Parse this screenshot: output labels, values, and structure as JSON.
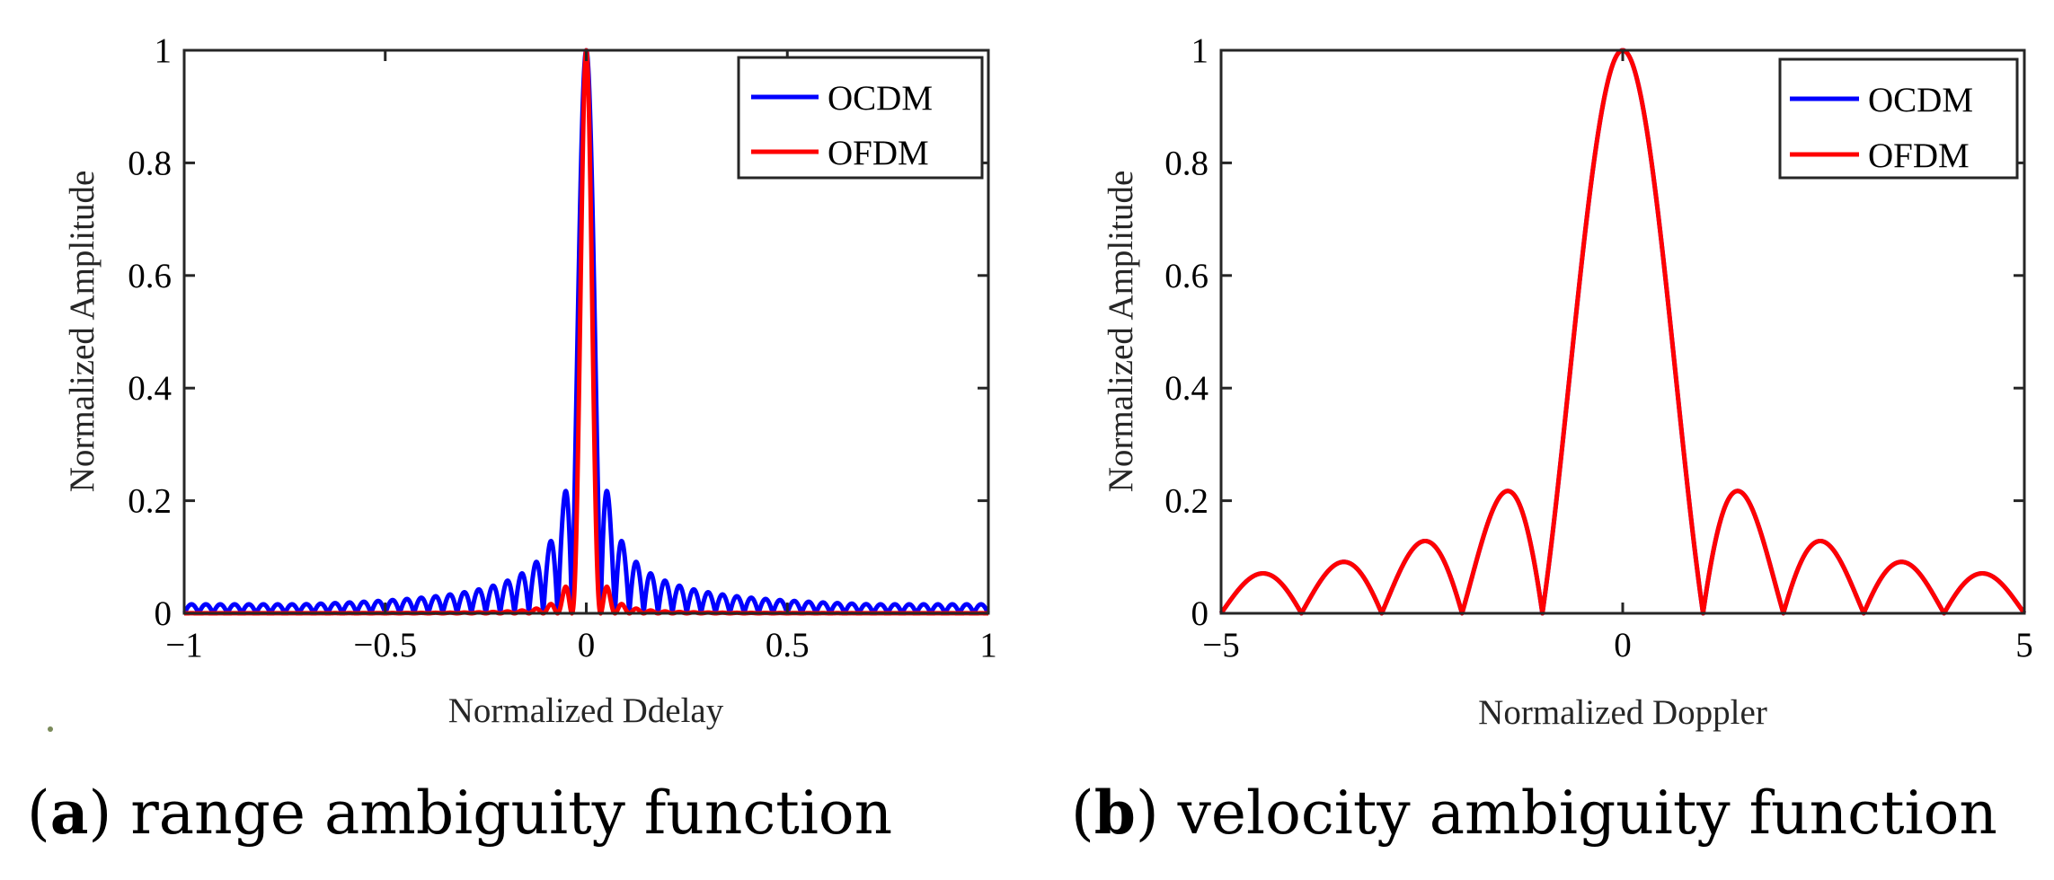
{
  "chart_data": [
    {
      "type": "line",
      "title": "",
      "caption_letter": "a",
      "caption_text": "range ambiguity function",
      "xlabel": "Normalized Ddelay",
      "ylabel": "Normalized Amplitude",
      "xlim": [
        -1,
        1
      ],
      "ylim": [
        0,
        1
      ],
      "xticks": [
        -1,
        -0.5,
        0,
        0.5,
        1
      ],
      "xtick_labels": [
        "−1",
        "−0.5",
        "0",
        "0.5",
        "1"
      ],
      "yticks": [
        0,
        0.2,
        0.4,
        0.6,
        0.8,
        1
      ],
      "ytick_labels": [
        "0",
        "0.2",
        "0.4",
        "0.6",
        "0.8",
        "1"
      ],
      "grid": false,
      "legend_position": "top-right",
      "series": [
        {
          "name": "OCDM",
          "color": "#0000ff",
          "model": "sinc",
          "peak": 1,
          "null_spacing": 0.0357,
          "sidelobe_floor": 0.016,
          "description_values": {
            "first_sidelobe": 0.2,
            "second_sidelobe": 0.115,
            "third_sidelobe": 0.075
          }
        },
        {
          "name": "OFDM",
          "color": "#ff0000",
          "model": "sinc-squared",
          "peak": 1,
          "null_spacing": 0.0357,
          "description_values": {
            "first_sidelobe": 0.04,
            "second_sidelobe": 0.014
          }
        }
      ]
    },
    {
      "type": "line",
      "title": "",
      "caption_letter": "b",
      "caption_text": "velocity ambiguity function",
      "xlabel": "Normalized Doppler",
      "ylabel": "Normalized Amplitude",
      "xlim": [
        -5,
        5
      ],
      "ylim": [
        0,
        1
      ],
      "xticks": [
        -5,
        0,
        5
      ],
      "xtick_labels": [
        "−5",
        "0",
        "5"
      ],
      "yticks": [
        0,
        0.2,
        0.4,
        0.6,
        0.8,
        1
      ],
      "ytick_labels": [
        "0",
        "0.2",
        "0.4",
        "0.6",
        "0.8",
        "1"
      ],
      "grid": false,
      "legend_position": "top-right",
      "series": [
        {
          "name": "OCDM",
          "color": "#0000ff",
          "model": "abs-sinc",
          "peak": 1,
          "null_spacing": 1,
          "description_values": {
            "first_sidelobe": 0.217,
            "second_sidelobe": 0.128,
            "third_sidelobe": 0.091,
            "fourth_sidelobe": 0.071
          }
        },
        {
          "name": "OFDM",
          "color": "#ff0000",
          "model": "abs-sinc",
          "peak": 1,
          "null_spacing": 1,
          "description_values": {
            "first_sidelobe": 0.217,
            "second_sidelobe": 0.128,
            "third_sidelobe": 0.091,
            "fourth_sidelobe": 0.071
          }
        }
      ]
    }
  ]
}
